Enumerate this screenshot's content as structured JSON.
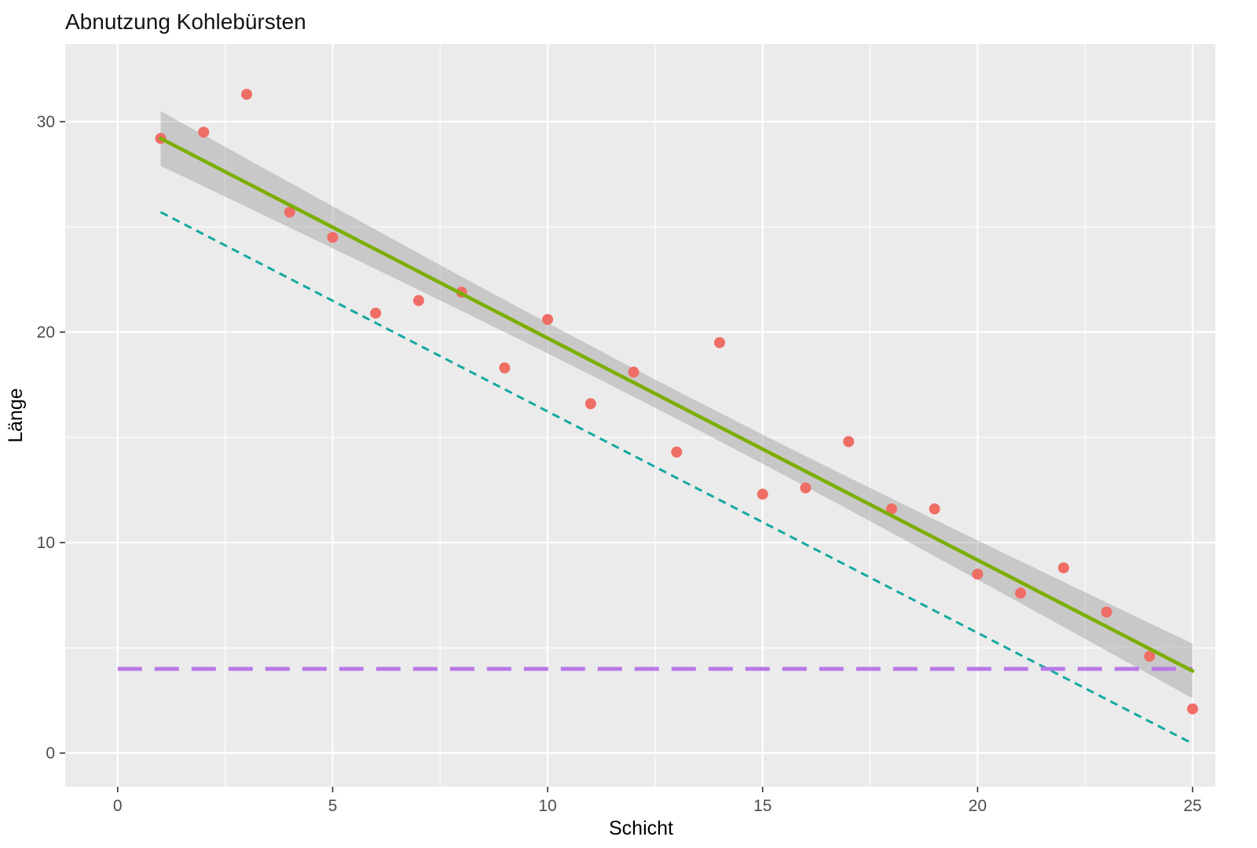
{
  "chart_data": {
    "type": "scatter",
    "title": "Abnutzung Kohlebürsten",
    "xlabel": "Schicht",
    "ylabel": "Länge",
    "xlim": [
      -1.22,
      25.53
    ],
    "ylim": [
      -1.6,
      33.69
    ],
    "xticks": [
      0,
      5,
      10,
      15,
      20,
      25
    ],
    "yticks": [
      0,
      10,
      20,
      30
    ],
    "xticks_minor": [
      2.5,
      7.5,
      12.5,
      17.5,
      22.5
    ],
    "yticks_minor": [
      5,
      15,
      25
    ],
    "grid": true,
    "legend": false,
    "panel_color": "#EBEBEB",
    "grid_color": "#FFFFFF",
    "tick_color": "#333333",
    "tick_label_color": "#4d4d4d",
    "point_color": "#EE6D65",
    "points": {
      "x": [
        1,
        2,
        3,
        4,
        5,
        6,
        7,
        8,
        9,
        10,
        11,
        12,
        13,
        14,
        15,
        16,
        17,
        18,
        19,
        20,
        21,
        22,
        23,
        24,
        25
      ],
      "y": [
        29.2,
        29.5,
        31.3,
        25.7,
        24.5,
        20.9,
        21.5,
        21.9,
        18.3,
        20.6,
        16.6,
        18.1,
        14.3,
        19.5,
        12.3,
        12.6,
        14.8,
        11.6,
        11.6,
        8.5,
        7.6,
        8.8,
        6.7,
        4.6,
        2.1
      ]
    },
    "regression_line": {
      "x_start": 1,
      "y_start": 29.2,
      "x_end": 25,
      "y_end": 3.9,
      "color": "#7CAE00",
      "style": "solid"
    },
    "confidence_band": {
      "halfwidth_center": 0.67,
      "halfwidth_ends": 1.3,
      "x_center": 13,
      "x_half_range": 12,
      "color": "#999999",
      "opacity": 0.42
    },
    "lower_dashed_line": {
      "x_start": 1,
      "y_start": 25.7,
      "x_end": 25,
      "y_end": 0.45,
      "color": "#14A9A0",
      "style": "dashed"
    },
    "threshold_line": {
      "y": 4,
      "x_start": 0,
      "x_end": 25,
      "color": "#B878E8",
      "style": "longdash"
    }
  }
}
